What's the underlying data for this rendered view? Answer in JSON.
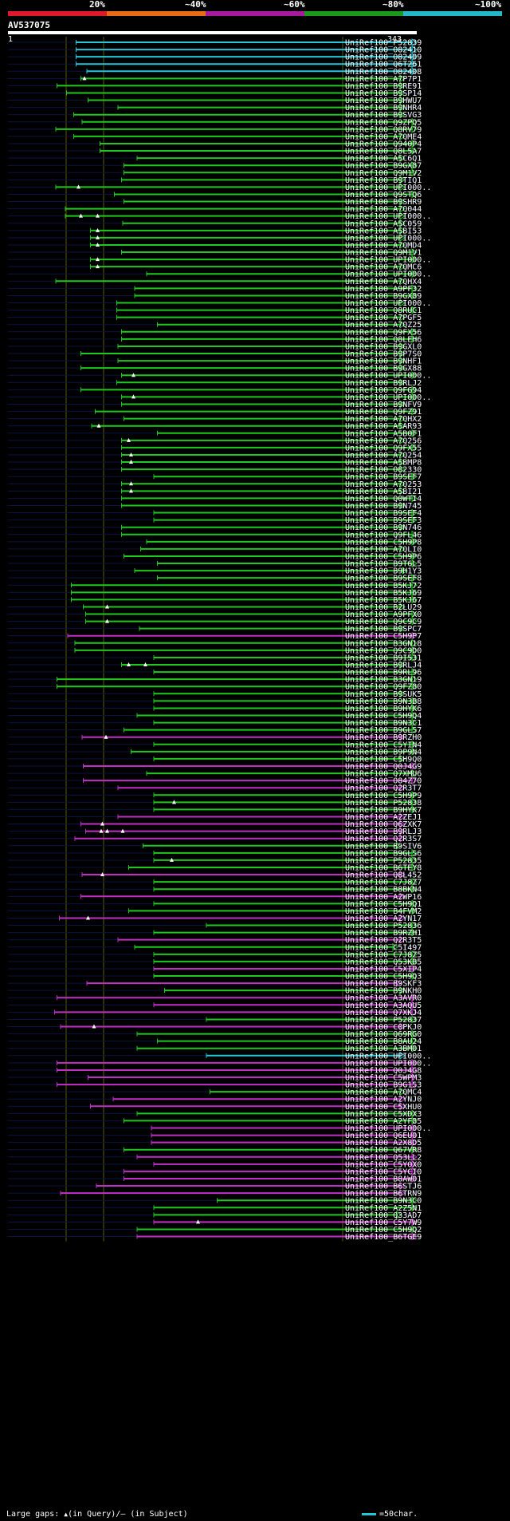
{
  "legend": {
    "labels": [
      "20%",
      "~40%",
      "~60%",
      "~80%",
      "~100%"
    ],
    "colors": [
      "#e0182c",
      "#e86c14",
      "#a81a9c",
      "#1c9a1c",
      "#22b8c8"
    ]
  },
  "query": {
    "name": "AV537075",
    "start": "1",
    "end": "343",
    "length": 343
  },
  "footer": {
    "large_gaps_label": "Large gaps:",
    "in_query": "(in Query)/",
    "in_subject": "(in Subject)",
    "scale_label": "=50char."
  },
  "hits": [
    {
      "name": "UniRef100_P52839",
      "color": "cyan",
      "start": 58,
      "end": 343
    },
    {
      "name": "UniRef100_O82410",
      "color": "cyan",
      "start": 58,
      "end": 343
    },
    {
      "name": "UniRef100_O82409",
      "color": "cyan",
      "start": 58,
      "end": 343
    },
    {
      "name": "UniRef100_Q6T261",
      "color": "cyan",
      "start": 58,
      "end": 343
    },
    {
      "name": "UniRef100_O82408",
      "color": "cyan",
      "start": 67,
      "end": 343
    },
    {
      "name": "UniRef100_A7P7P1",
      "color": "green",
      "start": 62,
      "end": 333,
      "gaps": [
        65
      ]
    },
    {
      "name": "UniRef100_B9RE91",
      "color": "green",
      "start": 42,
      "end": 333
    },
    {
      "name": "UniRef100_B9SP14",
      "color": "green",
      "start": 50,
      "end": 333
    },
    {
      "name": "UniRef100_B9HWU7",
      "color": "green",
      "start": 68,
      "end": 333
    },
    {
      "name": "UniRef100_B9NHR4",
      "color": "green",
      "start": 93,
      "end": 333
    },
    {
      "name": "UniRef100_B9SVG3",
      "color": "green",
      "start": 56,
      "end": 333
    },
    {
      "name": "UniRef100_Q9ZPQ5",
      "color": "green",
      "start": 63,
      "end": 343
    },
    {
      "name": "UniRef100_Q8RV79",
      "color": "green",
      "start": 41,
      "end": 343
    },
    {
      "name": "UniRef100_A7QME4",
      "color": "green",
      "start": 56,
      "end": 333
    },
    {
      "name": "UniRef100_Q940P4",
      "color": "green",
      "start": 78,
      "end": 343
    },
    {
      "name": "UniRef100_Q8L5A7",
      "color": "green",
      "start": 78,
      "end": 343
    },
    {
      "name": "UniRef100_A5C6Q1",
      "color": "green",
      "start": 109,
      "end": 333
    },
    {
      "name": "UniRef100_B9GX87",
      "color": "green",
      "start": 98,
      "end": 343
    },
    {
      "name": "UniRef100_Q9M1V2",
      "color": "green",
      "start": 98,
      "end": 343
    },
    {
      "name": "UniRef100_B9TIQ1",
      "color": "green",
      "start": 96,
      "end": 333
    },
    {
      "name": "UniRef100_UPI000..",
      "color": "green",
      "start": 41,
      "end": 333,
      "gaps": [
        60
      ]
    },
    {
      "name": "UniRef100_Q9STQ6",
      "color": "green",
      "start": 90,
      "end": 343
    },
    {
      "name": "UniRef100_B9SHR9",
      "color": "green",
      "start": 98,
      "end": 333
    },
    {
      "name": "UniRef100_A7Q044",
      "color": "green",
      "start": 49,
      "end": 333
    },
    {
      "name": "UniRef100_UPI000..",
      "color": "green",
      "start": 49,
      "end": 333,
      "gaps": [
        62,
        76
      ]
    },
    {
      "name": "UniRef100_A5C059",
      "color": "green",
      "start": 97,
      "end": 333
    },
    {
      "name": "UniRef100_A5BI53",
      "color": "green",
      "start": 70,
      "end": 333,
      "gaps": [
        76
      ]
    },
    {
      "name": "UniRef100_UPI000..",
      "color": "green",
      "start": 70,
      "end": 333,
      "gaps": [
        76
      ]
    },
    {
      "name": "UniRef100_A7QMD4",
      "color": "green",
      "start": 70,
      "end": 333,
      "gaps": [
        76
      ]
    },
    {
      "name": "UniRef100_Q9M1V1",
      "color": "green",
      "start": 96,
      "end": 343
    },
    {
      "name": "UniRef100_UPI000..",
      "color": "green",
      "start": 70,
      "end": 343,
      "gaps": [
        76
      ]
    },
    {
      "name": "UniRef100_A7QMC6",
      "color": "green",
      "start": 70,
      "end": 333,
      "gaps": [
        76
      ]
    },
    {
      "name": "UniRef100_UPI000..",
      "color": "green",
      "start": 117,
      "end": 343
    },
    {
      "name": "UniRef100_A7QHX4",
      "color": "green",
      "start": 41,
      "end": 333
    },
    {
      "name": "UniRef100_A9PF32",
      "color": "green",
      "start": 107,
      "end": 343
    },
    {
      "name": "UniRef100_B9GX89",
      "color": "green",
      "start": 107,
      "end": 343
    },
    {
      "name": "UniRef100_UPI000..",
      "color": "green",
      "start": 92,
      "end": 333
    },
    {
      "name": "UniRef100_Q8RUC1",
      "color": "green",
      "start": 92,
      "end": 343
    },
    {
      "name": "UniRef100_A7PGF5",
      "color": "green",
      "start": 92,
      "end": 333
    },
    {
      "name": "UniRef100_A7QZ25",
      "color": "green",
      "start": 126,
      "end": 333
    },
    {
      "name": "UniRef100_Q9FX56",
      "color": "green",
      "start": 96,
      "end": 343
    },
    {
      "name": "UniRef100_Q8LEH6",
      "color": "green",
      "start": 96,
      "end": 343
    },
    {
      "name": "UniRef100_B9GXL0",
      "color": "green",
      "start": 93,
      "end": 333
    },
    {
      "name": "UniRef100_B9P7S0",
      "color": "green",
      "start": 62,
      "end": 333
    },
    {
      "name": "UniRef100_B9NHF1",
      "color": "green",
      "start": 93,
      "end": 333
    },
    {
      "name": "UniRef100_B9GX88",
      "color": "green",
      "start": 62,
      "end": 333
    },
    {
      "name": "UniRef100_UPI000..",
      "color": "green",
      "start": 96,
      "end": 343,
      "gaps": [
        106
      ]
    },
    {
      "name": "UniRef100_B9RLJ2",
      "color": "green",
      "start": 92,
      "end": 333
    },
    {
      "name": "UniRef100_Q9FG94",
      "color": "green",
      "start": 62,
      "end": 343
    },
    {
      "name": "UniRef100_UPI000..",
      "color": "green",
      "start": 96,
      "end": 343,
      "gaps": [
        106
      ]
    },
    {
      "name": "UniRef100_B9NFV9",
      "color": "green",
      "start": 96,
      "end": 333
    },
    {
      "name": "UniRef100_Q9FZ91",
      "color": "green",
      "start": 74,
      "end": 343
    },
    {
      "name": "UniRef100_A7QHX2",
      "color": "green",
      "start": 98,
      "end": 333
    },
    {
      "name": "UniRef100_A5AR93",
      "color": "green",
      "start": 71,
      "end": 333,
      "gaps": [
        77
      ]
    },
    {
      "name": "UniRef100_A5B0F1",
      "color": "green",
      "start": 126,
      "end": 343
    },
    {
      "name": "UniRef100_A7Q256",
      "color": "green",
      "start": 96,
      "end": 333,
      "gaps": [
        102
      ]
    },
    {
      "name": "UniRef100_Q9FX55",
      "color": "green",
      "start": 96,
      "end": 343
    },
    {
      "name": "UniRef100_A7Q254",
      "color": "green",
      "start": 96,
      "end": 333,
      "gaps": [
        104
      ]
    },
    {
      "name": "UniRef100_A5BMP8",
      "color": "green",
      "start": 96,
      "end": 333,
      "gaps": [
        104
      ]
    },
    {
      "name": "UniRef100_O82330",
      "color": "green",
      "start": 96,
      "end": 333
    },
    {
      "name": "UniRef100_B9SEF7",
      "color": "green",
      "start": 123,
      "end": 343
    },
    {
      "name": "UniRef100_A7Q253",
      "color": "green",
      "start": 96,
      "end": 333,
      "gaps": [
        104
      ]
    },
    {
      "name": "UniRef100_A5BI21",
      "color": "green",
      "start": 96,
      "end": 333,
      "gaps": [
        104
      ]
    },
    {
      "name": "UniRef100_Q0WTI4",
      "color": "green",
      "start": 96,
      "end": 343
    },
    {
      "name": "UniRef100_B9N745",
      "color": "green",
      "start": 96,
      "end": 333
    },
    {
      "name": "UniRef100_B9SEF4",
      "color": "green",
      "start": 123,
      "end": 343
    },
    {
      "name": "UniRef100_B9SEF3",
      "color": "green",
      "start": 123,
      "end": 343
    },
    {
      "name": "UniRef100_B9N746",
      "color": "green",
      "start": 96,
      "end": 333
    },
    {
      "name": "UniRef100_Q9FL46",
      "color": "green",
      "start": 96,
      "end": 343
    },
    {
      "name": "UniRef100_C5H9P8",
      "color": "green",
      "start": 117,
      "end": 343
    },
    {
      "name": "UniRef100_A7QLI0",
      "color": "green",
      "start": 112,
      "end": 333
    },
    {
      "name": "UniRef100_C5H9P6",
      "color": "green",
      "start": 98,
      "end": 343
    },
    {
      "name": "UniRef100_B9T6L5",
      "color": "green",
      "start": 126,
      "end": 343
    },
    {
      "name": "UniRef100_B9H1Y3",
      "color": "green",
      "start": 107,
      "end": 335
    },
    {
      "name": "UniRef100_B9SEF8",
      "color": "green",
      "start": 126,
      "end": 343
    },
    {
      "name": "UniRef100_B5KJ72",
      "color": "green",
      "start": 54,
      "end": 343
    },
    {
      "name": "UniRef100_B5KJ69",
      "color": "green",
      "start": 54,
      "end": 343
    },
    {
      "name": "UniRef100_B5KJ67",
      "color": "green",
      "start": 54,
      "end": 343
    },
    {
      "name": "UniRef100_B2LU29",
      "color": "green",
      "start": 64,
      "end": 333,
      "gaps": [
        84
      ]
    },
    {
      "name": "UniRef100_A9PFX0",
      "color": "green",
      "start": 66,
      "end": 343
    },
    {
      "name": "UniRef100_Q9C9C9",
      "color": "green",
      "start": 66,
      "end": 343,
      "gaps": [
        84
      ]
    },
    {
      "name": "UniRef100_B9SPC7",
      "color": "green",
      "start": 111,
      "end": 333
    },
    {
      "name": "UniRef100_C5H9P7",
      "color": "purple",
      "start": 51,
      "end": 343
    },
    {
      "name": "UniRef100_B3GN18",
      "color": "green",
      "start": 57,
      "end": 343
    },
    {
      "name": "UniRef100_Q9C9D0",
      "color": "green",
      "start": 57,
      "end": 343
    },
    {
      "name": "UniRef100_B9I531",
      "color": "green",
      "start": 123,
      "end": 343
    },
    {
      "name": "UniRef100_B9RLJ4",
      "color": "green",
      "start": 96,
      "end": 333,
      "gaps": [
        102,
        116
      ]
    },
    {
      "name": "UniRef100_B9RL96",
      "color": "green",
      "start": 123,
      "end": 343
    },
    {
      "name": "UniRef100_B3GN19",
      "color": "green",
      "start": 42,
      "end": 343
    },
    {
      "name": "UniRef100_Q9FZ80",
      "color": "green",
      "start": 42,
      "end": 343
    },
    {
      "name": "UniRef100_B9SUK5",
      "color": "green",
      "start": 123,
      "end": 333
    },
    {
      "name": "UniRef100_B9N3B8",
      "color": "green",
      "start": 123,
      "end": 343
    },
    {
      "name": "UniRef100_B9HYK6",
      "color": "green",
      "start": 123,
      "end": 343
    },
    {
      "name": "UniRef100_C5H9Q4",
      "color": "green",
      "start": 109,
      "end": 343
    },
    {
      "name": "UniRef100_B9N3C1",
      "color": "green",
      "start": 123,
      "end": 343
    },
    {
      "name": "UniRef100_B9GLS7",
      "color": "green",
      "start": 98,
      "end": 343
    },
    {
      "name": "UniRef100_B9RZH0",
      "color": "purple",
      "start": 63,
      "end": 333,
      "gaps": [
        83
      ]
    },
    {
      "name": "UniRef100_C5YIN4",
      "color": "green",
      "start": 123,
      "end": 343
    },
    {
      "name": "UniRef100_B9P9N4",
      "color": "green",
      "start": 104,
      "end": 343
    },
    {
      "name": "UniRef100_C5H9Q0",
      "color": "green",
      "start": 123,
      "end": 333
    },
    {
      "name": "UniRef100_Q0J4G9",
      "color": "purple",
      "start": 64,
      "end": 343
    },
    {
      "name": "UniRef100_Q7XMU6",
      "color": "green",
      "start": 117,
      "end": 343
    },
    {
      "name": "UniRef100_O84Z70",
      "color": "purple",
      "start": 64,
      "end": 343
    },
    {
      "name": "UniRef100_Q2R3T7",
      "color": "purple",
      "start": 93,
      "end": 333
    },
    {
      "name": "UniRef100_C5H9P9",
      "color": "green",
      "start": 123,
      "end": 343
    },
    {
      "name": "UniRef100_P52838",
      "color": "green",
      "start": 123,
      "end": 343,
      "gaps": [
        140
      ]
    },
    {
      "name": "UniRef100_B9HYK7",
      "color": "green",
      "start": 123,
      "end": 343
    },
    {
      "name": "UniRef100_A2ZEJ1",
      "color": "purple",
      "start": 93,
      "end": 333
    },
    {
      "name": "UniRef100_Q6ZXK7",
      "color": "purple",
      "start": 62,
      "end": 333,
      "gaps": [
        80
      ]
    },
    {
      "name": "UniRef100_B9RLJ3",
      "color": "purple",
      "start": 66,
      "end": 333,
      "gaps": [
        79,
        84,
        97
      ]
    },
    {
      "name": "UniRef100_Q2R3S7",
      "color": "purple",
      "start": 57,
      "end": 333
    },
    {
      "name": "UniRef100_B9SIV6",
      "color": "green",
      "start": 114,
      "end": 330
    },
    {
      "name": "UniRef100_B9GLS6",
      "color": "green",
      "start": 123,
      "end": 343
    },
    {
      "name": "UniRef100_P52835",
      "color": "green",
      "start": 123,
      "end": 343,
      "gaps": [
        138
      ]
    },
    {
      "name": "UniRef100_B6TEY8",
      "color": "green",
      "start": 102,
      "end": 343
    },
    {
      "name": "UniRef100_Q8L452",
      "color": "purple",
      "start": 63,
      "end": 333,
      "gaps": [
        80
      ]
    },
    {
      "name": "UniRef100_C7J8Z7",
      "color": "green",
      "start": 123,
      "end": 343
    },
    {
      "name": "UniRef100_B8BKN4",
      "color": "green",
      "start": 123,
      "end": 343
    },
    {
      "name": "UniRef100_A2WP16",
      "color": "purple",
      "start": 62,
      "end": 333
    },
    {
      "name": "UniRef100_C5H9Q1",
      "color": "green",
      "start": 123,
      "end": 343
    },
    {
      "name": "UniRef100_B4FVM2",
      "color": "green",
      "start": 102,
      "end": 343
    },
    {
      "name": "UniRef100_A2YN17",
      "color": "purple",
      "start": 44,
      "end": 333,
      "gaps": [
        68
      ]
    },
    {
      "name": "UniRef100_P52836",
      "color": "green",
      "start": 167,
      "end": 343
    },
    {
      "name": "UniRef100_B9RZH1",
      "color": "green",
      "start": 123,
      "end": 343
    },
    {
      "name": "UniRef100_Q2R3T5",
      "color": "purple",
      "start": 93,
      "end": 333
    },
    {
      "name": "UniRef100_C5I497",
      "color": "green",
      "start": 107,
      "end": 327
    },
    {
      "name": "UniRef100_C7J8Z5",
      "color": "green",
      "start": 123,
      "end": 343
    },
    {
      "name": "UniRef100_Q53KB5",
      "color": "green",
      "start": 123,
      "end": 343
    },
    {
      "name": "UniRef100_C5XIP4",
      "color": "purple",
      "start": 123,
      "end": 343
    },
    {
      "name": "UniRef100_C5H9Q3",
      "color": "green",
      "start": 123,
      "end": 343
    },
    {
      "name": "UniRef100_B9SKF3",
      "color": "purple",
      "start": 67,
      "end": 330
    },
    {
      "name": "UniRef100_B9NKH0",
      "color": "green",
      "start": 132,
      "end": 333
    },
    {
      "name": "UniRef100_A3AVR0",
      "color": "purple",
      "start": 42,
      "end": 343
    },
    {
      "name": "UniRef100_A3AQU5",
      "color": "purple",
      "start": 123,
      "end": 343
    },
    {
      "name": "UniRef100_Q7XKJ4",
      "color": "purple",
      "start": 40,
      "end": 343
    },
    {
      "name": "UniRef100_P52837",
      "color": "green",
      "start": 167,
      "end": 343
    },
    {
      "name": "UniRef100_C0PKJ0",
      "color": "purple",
      "start": 45,
      "end": 333,
      "gaps": [
        73
      ]
    },
    {
      "name": "UniRef100_Q69RG0",
      "color": "green",
      "start": 109,
      "end": 343
    },
    {
      "name": "UniRef100_B8AU24",
      "color": "green",
      "start": 126,
      "end": 343
    },
    {
      "name": "UniRef100_A3BM01",
      "color": "green",
      "start": 109,
      "end": 343
    },
    {
      "name": "UniRef100_UPI000..",
      "color": "cyan",
      "start": 167,
      "end": 333
    },
    {
      "name": "UniRef100_UPI000..",
      "color": "purple",
      "start": 42,
      "end": 343
    },
    {
      "name": "UniRef100_Q0J4G8",
      "color": "purple",
      "start": 42,
      "end": 343
    },
    {
      "name": "UniRef100_C5WPM3",
      "color": "purple",
      "start": 68,
      "end": 343
    },
    {
      "name": "UniRef100_B9G1S3",
      "color": "purple",
      "start": 42,
      "end": 343
    },
    {
      "name": "UniRef100_A7QMC4",
      "color": "green",
      "start": 170,
      "end": 333
    },
    {
      "name": "UniRef100_A2YNJ0",
      "color": "purple",
      "start": 89,
      "end": 333
    },
    {
      "name": "UniRef100_C5XHU0",
      "color": "purple",
      "start": 70,
      "end": 333
    },
    {
      "name": "UniRef100_C5XDX3",
      "color": "green",
      "start": 109,
      "end": 343
    },
    {
      "name": "UniRef100_A2YF85",
      "color": "green",
      "start": 98,
      "end": 343
    },
    {
      "name": "UniRef100_UPI000..",
      "color": "purple",
      "start": 121,
      "end": 343
    },
    {
      "name": "UniRef100_Q6EU01",
      "color": "purple",
      "start": 121,
      "end": 343
    },
    {
      "name": "UniRef100_A2X8D5",
      "color": "purple",
      "start": 121,
      "end": 343
    },
    {
      "name": "UniRef100_Q67VR8",
      "color": "green",
      "start": 98,
      "end": 343
    },
    {
      "name": "UniRef100_Q53LL2",
      "color": "purple",
      "start": 109,
      "end": 343
    },
    {
      "name": "UniRef100_C5YOX0",
      "color": "purple",
      "start": 123,
      "end": 343
    },
    {
      "name": "UniRef100_C5YCI0",
      "color": "purple",
      "start": 98,
      "end": 343
    },
    {
      "name": "UniRef100_B8AW01",
      "color": "purple",
      "start": 98,
      "end": 343
    },
    {
      "name": "UniRef100_B6STJ6",
      "color": "purple",
      "start": 75,
      "end": 333
    },
    {
      "name": "UniRef100_B6TRN9",
      "color": "purple",
      "start": 45,
      "end": 333
    },
    {
      "name": "UniRef100_B9N3C0",
      "color": "green",
      "start": 176,
      "end": 343
    },
    {
      "name": "UniRef100_A2Z5N1",
      "color": "green",
      "start": 123,
      "end": 343
    },
    {
      "name": "UniRef100_Q33AD7",
      "color": "green",
      "start": 123,
      "end": 330
    },
    {
      "name": "UniRef100_C5Y7W9",
      "color": "purple",
      "start": 123,
      "end": 343,
      "gaps": [
        160
      ]
    },
    {
      "name": "UniRef100_C5H9Q2",
      "color": "green",
      "start": 109,
      "end": 343
    },
    {
      "name": "UniRef100_B6TGE9",
      "color": "purple",
      "start": 109,
      "end": 343
    }
  ],
  "colors": {
    "cyan": "#22c8d8",
    "green": "#1ec81e",
    "purple": "#c030c8",
    "background": "#000000",
    "row_line": "#0a1440",
    "guide_line": "#5a5a10"
  }
}
